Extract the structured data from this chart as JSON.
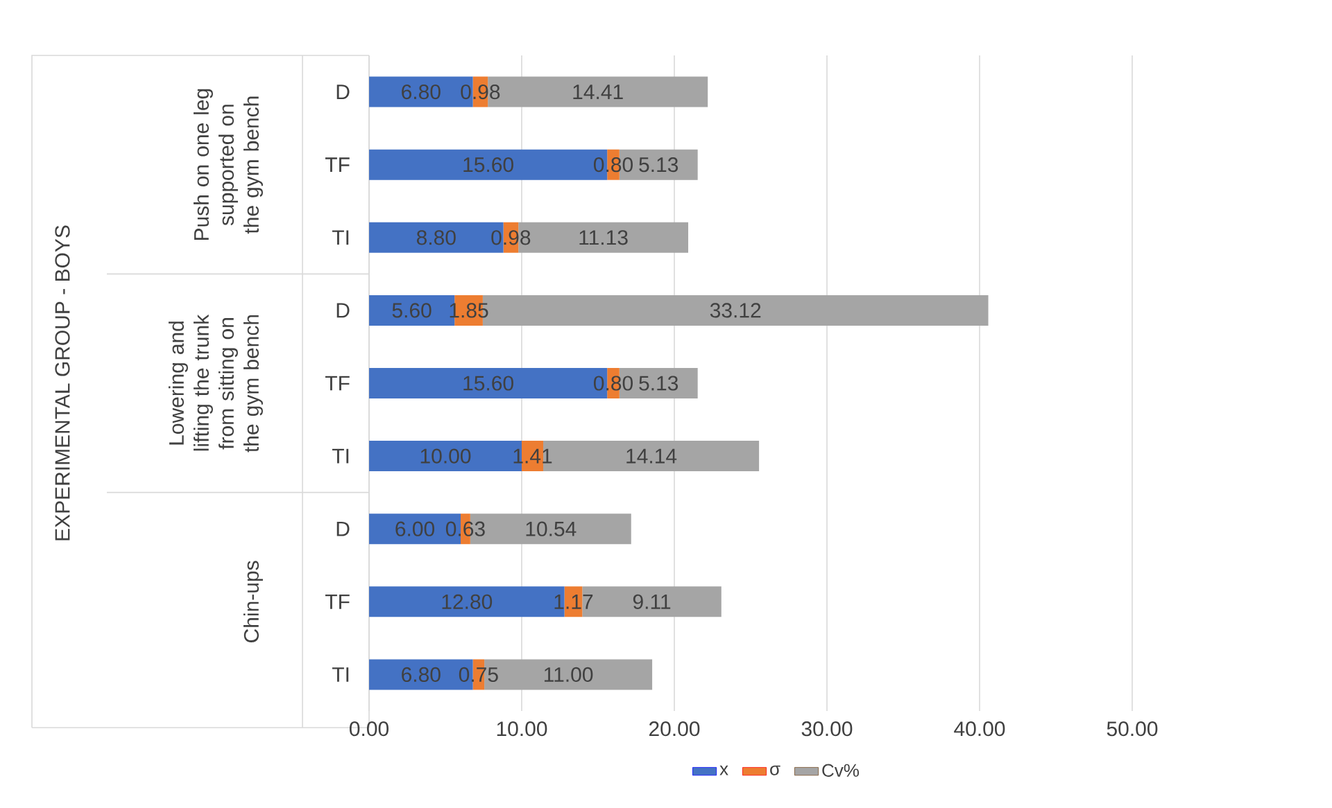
{
  "chart_data": {
    "type": "bar",
    "orientation": "horizontal",
    "stacked": true,
    "annotations": [
      "EXPERIMENTAL GROUP - BOYS",
      "Push on one leg supported on the gym bench",
      "Lowering and lifting the trunk from sitting on the gym bench",
      "Chin-ups"
    ],
    "categories": [
      "D",
      "TF",
      "TI",
      "D",
      "TF",
      "TI",
      "D",
      "TF",
      "TI"
    ],
    "series": [
      {
        "name": "x",
        "color": "#4472c4",
        "values": [
          6.8,
          15.6,
          8.8,
          5.6,
          15.6,
          10.0,
          6.0,
          12.8,
          6.8
        ],
        "value_labels": [
          "6.80",
          "15.60",
          "8.80",
          "5.60",
          "15.60",
          "10.00",
          "6.00",
          "12.80",
          "6.80"
        ]
      },
      {
        "name": "σ",
        "color": "#ed7d31",
        "values": [
          0.98,
          0.8,
          0.98,
          1.85,
          0.8,
          1.41,
          0.63,
          1.17,
          0.75
        ],
        "value_labels": [
          "0.98",
          "0.80",
          "0.98",
          "1.85",
          "0.80",
          "1.41",
          "0.63",
          "1.17",
          "0.75"
        ]
      },
      {
        "name": "Cv%",
        "color": "#a5a5a5",
        "values": [
          14.41,
          5.13,
          11.13,
          33.12,
          5.13,
          14.14,
          10.54,
          9.11,
          11.0
        ],
        "value_labels": [
          "14.41",
          "5.13",
          "11.13",
          "33.12",
          "5.13",
          "14.14",
          "10.54",
          "9.11",
          "11.00"
        ]
      }
    ],
    "xlim": [
      0,
      50
    ],
    "xticks": [
      {
        "value": 0,
        "label": "0.00"
      },
      {
        "value": 10,
        "label": "10.00"
      },
      {
        "value": 20,
        "label": "20.00"
      },
      {
        "value": 30,
        "label": "30.00"
      },
      {
        "value": 40,
        "label": "40.00"
      },
      {
        "value": 50,
        "label": "50.00"
      }
    ],
    "grid": "x",
    "legend": "bottom"
  }
}
